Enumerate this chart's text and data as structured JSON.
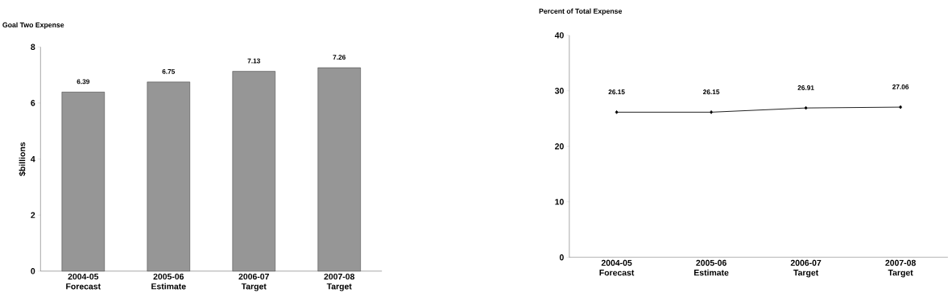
{
  "chart_data": [
    {
      "type": "bar",
      "title": "Goal Two Expense",
      "ylabel": "$billions",
      "categories": [
        "2004-05 Forecast",
        "2005-06 Estimate",
        "2006-07 Target",
        "2007-08 Target"
      ],
      "values": [
        6.39,
        6.75,
        7.13,
        7.26
      ],
      "color": "#969696",
      "ylim": [
        0,
        8
      ],
      "yticks": [
        0,
        2,
        4,
        6,
        8
      ],
      "data_labels": true
    },
    {
      "type": "line",
      "title": "Percent of Total Expense",
      "categories": [
        "2004-05 Forecast",
        "2005-06 Estimate",
        "2006-07 Target",
        "2007-08 Target"
      ],
      "values": [
        26.15,
        26.15,
        26.91,
        27.06
      ],
      "color": "#000000",
      "marker": "diamond",
      "ylim": [
        0,
        40
      ],
      "yticks": [
        0,
        10,
        20,
        30,
        40
      ],
      "data_labels": true
    }
  ]
}
